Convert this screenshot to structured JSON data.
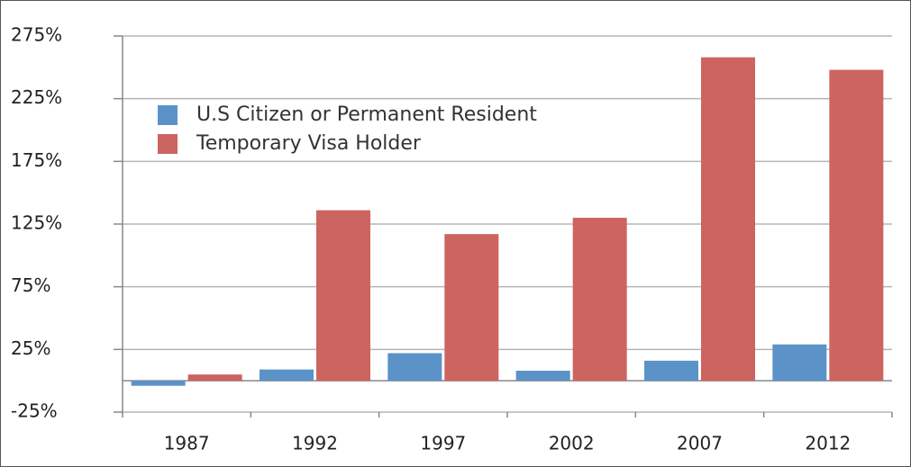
{
  "chart_data": {
    "type": "bar",
    "categories": [
      "1987",
      "1992",
      "1997",
      "2002",
      "2007",
      "2012"
    ],
    "series": [
      {
        "name": "U.S Citizen or Permanent Resident",
        "color": "#5b93c9",
        "values": [
          -4,
          9,
          22,
          8,
          16,
          29
        ]
      },
      {
        "name": "Temporary Visa Holder",
        "color": "#cc6460",
        "values": [
          5,
          136,
          117,
          130,
          258,
          248
        ]
      }
    ],
    "ylim": [
      -25,
      275
    ],
    "yticks": [
      {
        "value": -25,
        "label": "-25%"
      },
      {
        "value": 25,
        "label": "25%"
      },
      {
        "value": 75,
        "label": "75%"
      },
      {
        "value": 125,
        "label": "125%"
      },
      {
        "value": 175,
        "label": "175%"
      },
      {
        "value": 225,
        "label": "225%"
      },
      {
        "value": 275,
        "label": "275%"
      }
    ],
    "grid": true,
    "legend": "upper left"
  }
}
